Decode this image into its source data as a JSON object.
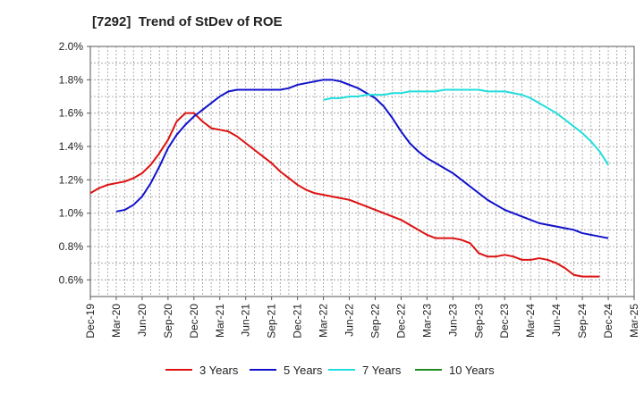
{
  "chart_data": {
    "type": "line",
    "title": "[7292]  Trend of StDev of ROE",
    "xlabel": "",
    "ylabel": "",
    "x_ticks": [
      "Dec-19",
      "Mar-20",
      "Jun-20",
      "Sep-20",
      "Dec-20",
      "Mar-21",
      "Jun-21",
      "Sep-21",
      "Dec-21",
      "Mar-22",
      "Jun-22",
      "Sep-22",
      "Dec-22",
      "Mar-23",
      "Jun-23",
      "Sep-23",
      "Dec-23",
      "Mar-24",
      "Jun-24",
      "Sep-24",
      "Dec-24",
      "Mar-25"
    ],
    "y_ticks": [
      "0.6%",
      "0.8%",
      "1.0%",
      "1.2%",
      "1.4%",
      "1.6%",
      "1.8%",
      "2.0%"
    ],
    "ylim": [
      0.5,
      2.0
    ],
    "grid": true,
    "legend_position": "bottom",
    "series": [
      {
        "name": "3 Years",
        "color": "#dd1111",
        "points": [
          [
            "Dec-19",
            1.12
          ],
          [
            "Jan-20",
            1.15
          ],
          [
            "Feb-20",
            1.17
          ],
          [
            "Mar-20",
            1.18
          ],
          [
            "Apr-20",
            1.19
          ],
          [
            "May-20",
            1.21
          ],
          [
            "Jun-20",
            1.24
          ],
          [
            "Jul-20",
            1.29
          ],
          [
            "Aug-20",
            1.36
          ],
          [
            "Sep-20",
            1.44
          ],
          [
            "Oct-20",
            1.55
          ],
          [
            "Nov-20",
            1.6
          ],
          [
            "Dec-20",
            1.6
          ],
          [
            "Jan-21",
            1.55
          ],
          [
            "Feb-21",
            1.51
          ],
          [
            "Mar-21",
            1.5
          ],
          [
            "Apr-21",
            1.49
          ],
          [
            "May-21",
            1.46
          ],
          [
            "Jun-21",
            1.42
          ],
          [
            "Jul-21",
            1.38
          ],
          [
            "Aug-21",
            1.34
          ],
          [
            "Sep-21",
            1.3
          ],
          [
            "Oct-21",
            1.25
          ],
          [
            "Nov-21",
            1.21
          ],
          [
            "Dec-21",
            1.17
          ],
          [
            "Jan-22",
            1.14
          ],
          [
            "Feb-22",
            1.12
          ],
          [
            "Mar-22",
            1.11
          ],
          [
            "Apr-22",
            1.1
          ],
          [
            "May-22",
            1.09
          ],
          [
            "Jun-22",
            1.08
          ],
          [
            "Jul-22",
            1.06
          ],
          [
            "Aug-22",
            1.04
          ],
          [
            "Sep-22",
            1.02
          ],
          [
            "Oct-22",
            1.0
          ],
          [
            "Nov-22",
            0.98
          ],
          [
            "Dec-22",
            0.96
          ],
          [
            "Jan-23",
            0.93
          ],
          [
            "Feb-23",
            0.9
          ],
          [
            "Mar-23",
            0.87
          ],
          [
            "Apr-23",
            0.85
          ],
          [
            "May-23",
            0.85
          ],
          [
            "Jun-23",
            0.85
          ],
          [
            "Jul-23",
            0.84
          ],
          [
            "Aug-23",
            0.82
          ],
          [
            "Sep-23",
            0.76
          ],
          [
            "Oct-23",
            0.74
          ],
          [
            "Nov-23",
            0.74
          ],
          [
            "Dec-23",
            0.75
          ],
          [
            "Jan-24",
            0.74
          ],
          [
            "Feb-24",
            0.72
          ],
          [
            "Mar-24",
            0.72
          ],
          [
            "Apr-24",
            0.73
          ],
          [
            "May-24",
            0.72
          ],
          [
            "Jun-24",
            0.7
          ],
          [
            "Jul-24",
            0.67
          ],
          [
            "Aug-24",
            0.63
          ],
          [
            "Sep-24",
            0.62
          ],
          [
            "Oct-24",
            0.62
          ],
          [
            "Nov-24",
            0.62
          ]
        ]
      },
      {
        "name": "5 Years",
        "color": "#1111cc",
        "points": [
          [
            "Mar-20",
            1.01
          ],
          [
            "Apr-20",
            1.02
          ],
          [
            "May-20",
            1.05
          ],
          [
            "Jun-20",
            1.1
          ],
          [
            "Jul-20",
            1.18
          ],
          [
            "Aug-20",
            1.28
          ],
          [
            "Sep-20",
            1.39
          ],
          [
            "Oct-20",
            1.47
          ],
          [
            "Nov-20",
            1.53
          ],
          [
            "Dec-20",
            1.58
          ],
          [
            "Jan-21",
            1.62
          ],
          [
            "Feb-21",
            1.66
          ],
          [
            "Mar-21",
            1.7
          ],
          [
            "Apr-21",
            1.73
          ],
          [
            "May-21",
            1.74
          ],
          [
            "Jun-21",
            1.74
          ],
          [
            "Jul-21",
            1.74
          ],
          [
            "Aug-21",
            1.74
          ],
          [
            "Sep-21",
            1.74
          ],
          [
            "Oct-21",
            1.74
          ],
          [
            "Nov-21",
            1.75
          ],
          [
            "Dec-21",
            1.77
          ],
          [
            "Jan-22",
            1.78
          ],
          [
            "Feb-22",
            1.79
          ],
          [
            "Mar-22",
            1.8
          ],
          [
            "Apr-22",
            1.8
          ],
          [
            "May-22",
            1.79
          ],
          [
            "Jun-22",
            1.77
          ],
          [
            "Jul-22",
            1.75
          ],
          [
            "Aug-22",
            1.72
          ],
          [
            "Sep-22",
            1.69
          ],
          [
            "Oct-22",
            1.64
          ],
          [
            "Nov-22",
            1.57
          ],
          [
            "Dec-22",
            1.49
          ],
          [
            "Jan-23",
            1.42
          ],
          [
            "Feb-23",
            1.37
          ],
          [
            "Mar-23",
            1.33
          ],
          [
            "Apr-23",
            1.3
          ],
          [
            "May-23",
            1.27
          ],
          [
            "Jun-23",
            1.24
          ],
          [
            "Jul-23",
            1.2
          ],
          [
            "Aug-23",
            1.16
          ],
          [
            "Sep-23",
            1.12
          ],
          [
            "Oct-23",
            1.08
          ],
          [
            "Nov-23",
            1.05
          ],
          [
            "Dec-23",
            1.02
          ],
          [
            "Jan-24",
            1.0
          ],
          [
            "Feb-24",
            0.98
          ],
          [
            "Mar-24",
            0.96
          ],
          [
            "Apr-24",
            0.94
          ],
          [
            "May-24",
            0.93
          ],
          [
            "Jun-24",
            0.92
          ],
          [
            "Jul-24",
            0.91
          ],
          [
            "Aug-24",
            0.9
          ],
          [
            "Sep-24",
            0.88
          ],
          [
            "Oct-24",
            0.87
          ],
          [
            "Nov-24",
            0.86
          ],
          [
            "Dec-24",
            0.85
          ]
        ]
      },
      {
        "name": "7 Years",
        "color": "#22dddd",
        "points": [
          [
            "Mar-22",
            1.68
          ],
          [
            "Apr-22",
            1.69
          ],
          [
            "May-22",
            1.69
          ],
          [
            "Jun-22",
            1.7
          ],
          [
            "Jul-22",
            1.7
          ],
          [
            "Aug-22",
            1.71
          ],
          [
            "Sep-22",
            1.71
          ],
          [
            "Oct-22",
            1.71
          ],
          [
            "Nov-22",
            1.72
          ],
          [
            "Dec-22",
            1.72
          ],
          [
            "Jan-23",
            1.73
          ],
          [
            "Feb-23",
            1.73
          ],
          [
            "Mar-23",
            1.73
          ],
          [
            "Apr-23",
            1.73
          ],
          [
            "May-23",
            1.74
          ],
          [
            "Jun-23",
            1.74
          ],
          [
            "Jul-23",
            1.74
          ],
          [
            "Aug-23",
            1.74
          ],
          [
            "Sep-23",
            1.74
          ],
          [
            "Oct-23",
            1.73
          ],
          [
            "Nov-23",
            1.73
          ],
          [
            "Dec-23",
            1.73
          ],
          [
            "Jan-24",
            1.72
          ],
          [
            "Feb-24",
            1.71
          ],
          [
            "Mar-24",
            1.69
          ],
          [
            "Apr-24",
            1.66
          ],
          [
            "May-24",
            1.63
          ],
          [
            "Jun-24",
            1.6
          ],
          [
            "Jul-24",
            1.56
          ],
          [
            "Aug-24",
            1.52
          ],
          [
            "Sep-24",
            1.48
          ],
          [
            "Oct-24",
            1.43
          ],
          [
            "Nov-24",
            1.37
          ],
          [
            "Dec-24",
            1.29
          ]
        ]
      },
      {
        "name": "10 Years",
        "color": "#228822",
        "points": []
      }
    ]
  }
}
